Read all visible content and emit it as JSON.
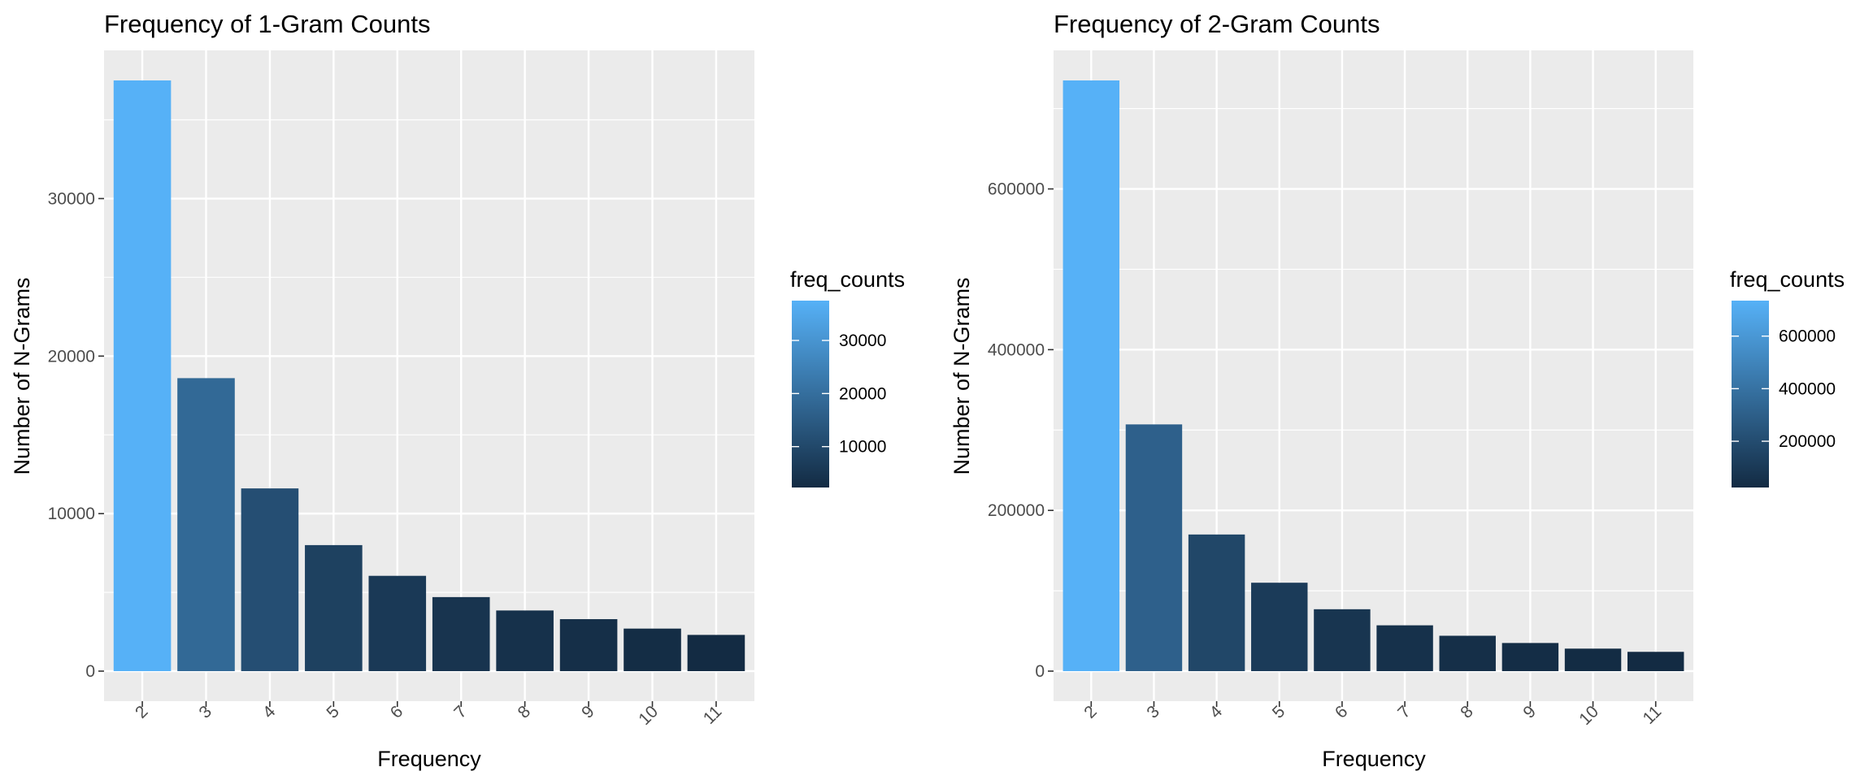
{
  "chart_data": [
    {
      "type": "bar",
      "title": "Frequency of 1-Gram Counts",
      "xlabel": "Frequency",
      "ylabel": "Number of N-Grams",
      "categories": [
        "2",
        "3",
        "4",
        "5",
        "6",
        "7",
        "8",
        "9",
        "10",
        "11"
      ],
      "values": [
        37500,
        18600,
        11600,
        8000,
        6050,
        4700,
        3850,
        3300,
        2700,
        2300
      ],
      "ylim": [
        0,
        37500
      ],
      "yticks": [
        0,
        10000,
        20000,
        30000
      ],
      "grid": true,
      "legend": {
        "title": "freq_counts",
        "position": "right",
        "range": [
          2300,
          37500
        ],
        "ticks": [
          10000,
          20000,
          30000
        ],
        "color_low": "#132B43",
        "color_high": "#56B1F7"
      }
    },
    {
      "type": "bar",
      "title": "Frequency of 2-Gram Counts",
      "xlabel": "Frequency",
      "ylabel": "Number of N-Grams",
      "categories": [
        "2",
        "3",
        "4",
        "5",
        "6",
        "7",
        "8",
        "9",
        "10",
        "11"
      ],
      "values": [
        735000,
        307000,
        170000,
        110000,
        77000,
        57000,
        44000,
        35000,
        28000,
        24000
      ],
      "ylim": [
        0,
        735000
      ],
      "yticks": [
        0,
        200000,
        400000,
        600000
      ],
      "grid": true,
      "legend": {
        "title": "freq_counts",
        "position": "right",
        "range": [
          24000,
          735000
        ],
        "ticks": [
          200000,
          400000,
          600000
        ],
        "color_low": "#132B43",
        "color_high": "#56B1F7"
      }
    }
  ]
}
